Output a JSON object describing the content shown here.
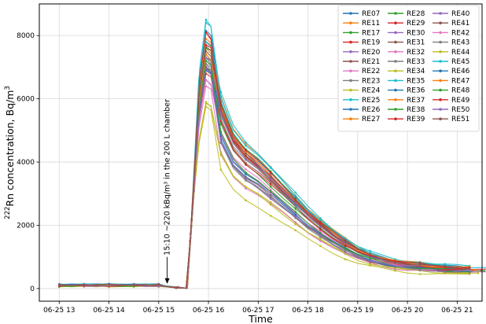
{
  "chart_data": {
    "type": "line",
    "xlabel": "Time",
    "ylabel_prefix": "222",
    "ylabel_main": "Rn concentration, Bq/m",
    "ylabel_suffix": "3",
    "x_ticks": [
      "06-25 13",
      "06-25 14",
      "06-25 15",
      "06-25 16",
      "06-25 17",
      "06-25 18",
      "06-25 19",
      "06-25 20",
      "06-25 21"
    ],
    "y_ticks": [
      0,
      2000,
      4000,
      6000,
      8000
    ],
    "xlim_hours": [
      12.6,
      21.5
    ],
    "ylim": [
      -400,
      9000
    ],
    "grid": true,
    "legend_placement": "top-right",
    "annotation": {
      "text": "15:10 ~220 kBq/m³ in the 200 L chamber",
      "x_hours": 15.17,
      "y": 150,
      "text_y_start": 1000
    },
    "series_names": [
      "RE07",
      "RE11",
      "RE17",
      "RE19",
      "RE20",
      "RE21",
      "RE22",
      "RE23",
      "RE24",
      "RE25",
      "RE26",
      "RE27",
      "RE28",
      "RE29",
      "RE30",
      "RE31",
      "RE32",
      "RE33",
      "RE34",
      "RE35",
      "RE36",
      "RE37",
      "RE38",
      "RE39",
      "RE40",
      "RE41",
      "RE42",
      "RE43",
      "RE44",
      "RE45",
      "RE46",
      "RE47",
      "RE48",
      "RE49",
      "RE50",
      "RE51"
    ],
    "series_colors": [
      "#1f77b4",
      "#ff7f0e",
      "#2ca02c",
      "#d62728",
      "#9467bd",
      "#8c564b",
      "#e377c2",
      "#7f7f7f",
      "#bcbd22",
      "#17becf",
      "#1f77b4",
      "#ff7f0e",
      "#2ca02c",
      "#d62728",
      "#9467bd",
      "#8c564b",
      "#e377c2",
      "#7f7f7f",
      "#bcbd22",
      "#17becf",
      "#1f77b4",
      "#ff7f0e",
      "#2ca02c",
      "#d62728",
      "#9467bd",
      "#8c564b",
      "#e377c2",
      "#7f7f7f",
      "#bcbd22",
      "#17becf",
      "#1f77b4",
      "#ff7f0e",
      "#2ca02c",
      "#d62728",
      "#9467bd",
      "#8c564b"
    ],
    "series_peaks": [
      7300,
      7600,
      7000,
      8100,
      7200,
      7800,
      6600,
      6900,
      5850,
      8500,
      8150,
      7700,
      7400,
      6800,
      7100,
      7500,
      6400,
      7300,
      5750,
      8400,
      7000,
      7900,
      7600,
      8100,
      7300,
      7000,
      6600,
      7100,
      5900,
      7800,
      6900,
      7400,
      7200,
      7700,
      6950,
      7650
    ],
    "series_baselines": [
      120,
      110,
      90,
      100,
      115,
      105,
      95,
      85,
      80,
      130,
      125,
      100,
      90,
      110,
      105,
      95,
      85,
      100,
      75,
      120,
      115,
      110,
      95,
      100,
      90,
      85,
      95,
      100,
      80,
      125,
      110,
      105,
      90,
      100,
      95,
      115
    ],
    "series_ends": [
      540,
      560,
      520,
      600,
      530,
      550,
      510,
      500,
      470,
      650,
      580,
      560,
      540,
      590,
      530,
      550,
      500,
      520,
      470,
      640,
      560,
      570,
      540,
      590,
      530,
      520,
      510,
      540,
      480,
      610,
      550,
      560,
      530,
      580,
      540,
      560
    ],
    "decay_profile": [
      [
        16.0,
        1.0
      ],
      [
        16.25,
        0.72
      ],
      [
        16.5,
        0.6
      ],
      [
        16.75,
        0.54
      ],
      [
        17.0,
        0.5
      ],
      [
        17.25,
        0.45
      ],
      [
        17.5,
        0.4
      ],
      [
        17.75,
        0.35
      ],
      [
        18.0,
        0.3
      ],
      [
        18.25,
        0.26
      ],
      [
        18.5,
        0.22
      ],
      [
        18.75,
        0.185
      ],
      [
        19.0,
        0.155
      ],
      [
        19.25,
        0.135
      ],
      [
        19.5,
        0.12
      ],
      [
        19.75,
        0.108
      ],
      [
        20.0,
        0.1
      ],
      [
        20.25,
        0.095
      ],
      [
        20.5,
        0.09
      ],
      [
        20.75,
        0.087
      ],
      [
        21.0,
        0.085
      ],
      [
        21.25,
        0.083
      ]
    ]
  }
}
